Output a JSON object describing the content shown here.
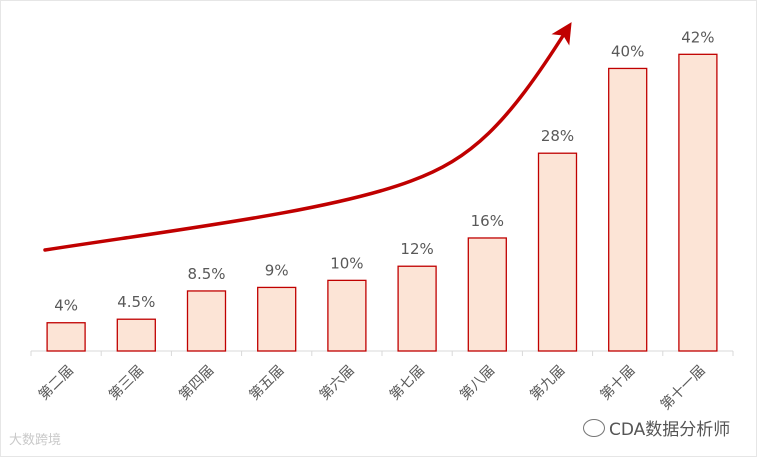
{
  "chart_data": {
    "type": "bar",
    "categories": [
      "第二届",
      "第三届",
      "第四届",
      "第五届",
      "第六届",
      "第七届",
      "第八届",
      "第九届",
      "第十届",
      "第十一届"
    ],
    "values": [
      4,
      4.5,
      8.5,
      9,
      10,
      12,
      16,
      28,
      40,
      42
    ],
    "data_labels": [
      "4%",
      "4.5%",
      "8.5%",
      "9%",
      "10%",
      "12%",
      "16%",
      "28%",
      "40%",
      "42%"
    ],
    "title": "",
    "xlabel": "",
    "ylabel": "",
    "ylim": [
      0,
      47
    ],
    "grid": false,
    "legend": "none",
    "trend_arrow": true,
    "colors": {
      "bar_fill": "#fce4d6",
      "bar_stroke": "#c00000",
      "trend": "#c00000",
      "label": "#595959",
      "axis": "#d9d9d9"
    }
  },
  "watermarks": {
    "left": "大数跨境",
    "right": "CDA数据分析师",
    "right_icon": "wechat-icon"
  }
}
